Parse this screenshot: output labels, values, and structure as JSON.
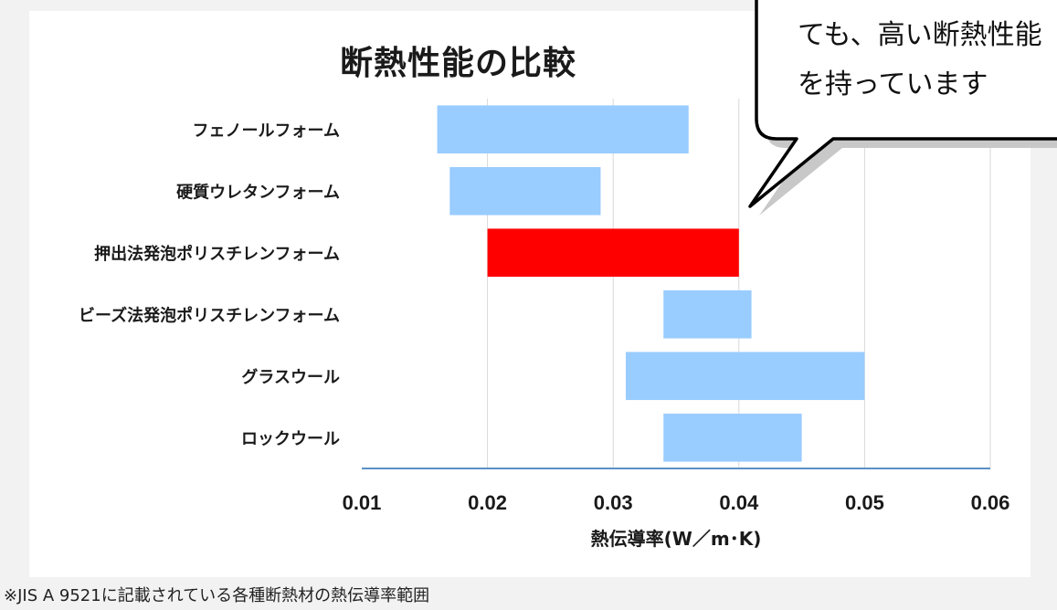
{
  "chart_data": {
    "type": "floating-bar",
    "title": "断熱性能の比較",
    "xlabel": "熱伝導率(W／m･K)",
    "xlim": [
      0.01,
      0.06
    ],
    "xticks": [
      "0.01",
      "0.02",
      "0.03",
      "0.04",
      "0.05",
      "0.06"
    ],
    "grid": "vertical",
    "categories": [
      "フェノールフォーム",
      "硬質ウレタンフォーム",
      "押出法発泡ポリスチレンフォーム",
      "ビーズ法発泡ポリスチレンフォーム",
      "グラスウール",
      "ロックウール"
    ],
    "ranges": [
      [
        0.016,
        0.036
      ],
      [
        0.017,
        0.029
      ],
      [
        0.02,
        0.04
      ],
      [
        0.034,
        0.041
      ],
      [
        0.031,
        0.05
      ],
      [
        0.034,
        0.045
      ]
    ],
    "highlight_index": 2,
    "colors": {
      "bar": "#99ccff",
      "highlight": "#ff0000",
      "axis": "#5b8fc8",
      "grid": "#d9d9d9"
    }
  },
  "note": "※JIS A 9521に記載されている各種断熱材の熱伝導率範囲",
  "callout": {
    "line1": "ても、高い断熱性能",
    "line2": "を持っています"
  }
}
